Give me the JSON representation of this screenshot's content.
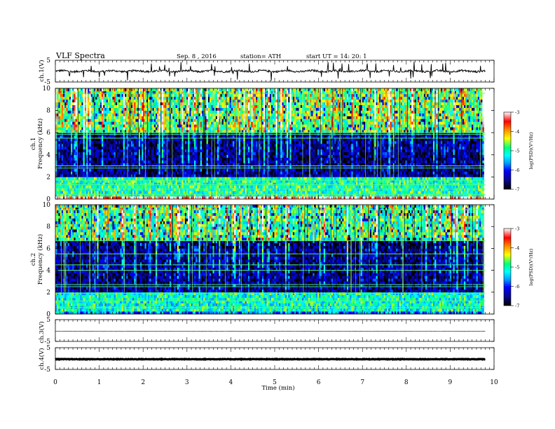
{
  "header": {
    "title": "VLF  Spectra",
    "date": "Sep. 8  , 2016",
    "station": "station= ATH",
    "start": "start  UT  =    14: 20: 1"
  },
  "colors": {
    "waveform": "#000000",
    "spectrogram_scale": [
      "#000000",
      "#08088c",
      "#0000ff",
      "#00a0ff",
      "#00ffff",
      "#00ff80",
      "#ffff00",
      "#ff8000",
      "#ff0000",
      "#ffffff"
    ]
  },
  "chart_data": [
    {
      "type": "line",
      "panel": "ch1-waveform",
      "ylabel": "ch.1(V)",
      "ylim": [
        -5,
        5
      ],
      "yticks": [
        "5",
        "-5"
      ],
      "xlim": [
        0,
        10
      ],
      "x_extent": [
        0,
        9.8
      ],
      "baseline": 0,
      "description_values": {
        "typical_amplitude": 0.8,
        "spike_amplitude": 2.5
      }
    },
    {
      "type": "heatmap",
      "panel": "ch1-spectrogram",
      "ylabel_channel": "ch.1",
      "ylabel": "Frequency  (kHz)",
      "ylim": [
        0,
        10
      ],
      "yticks": [
        "0",
        "2",
        "4",
        "6",
        "8",
        "10"
      ],
      "xlim": [
        0,
        10
      ],
      "x_extent": [
        0,
        9.8
      ],
      "colorbar": {
        "label": "log(PSD)(V²/Hz)",
        "range": [
          -7,
          -3
        ],
        "ticks": [
          "-3",
          "-4",
          "-5",
          "-6",
          "-7"
        ]
      },
      "bands": [
        {
          "f_range": [
            0,
            0.2
          ],
          "logpsd": -3.2
        },
        {
          "f_range": [
            0.2,
            2.0
          ],
          "logpsd": -5.0
        },
        {
          "f_range": [
            2.0,
            6.0
          ],
          "logpsd": -6.6
        },
        {
          "f_range": [
            6.0,
            10.0
          ],
          "logpsd": -4.8
        }
      ],
      "lines_khz": [
        0.4,
        0.9,
        1.3,
        1.7,
        2.8,
        3.0,
        5.5,
        5.85,
        6.0,
        9.55
      ]
    },
    {
      "type": "heatmap",
      "panel": "ch2-spectrogram",
      "ylabel_channel": "ch.2",
      "ylabel": "Frequency  (kHz)",
      "ylim": [
        0,
        10
      ],
      "yticks": [
        "0",
        "2",
        "4",
        "6",
        "8",
        "10"
      ],
      "xlim": [
        0,
        10
      ],
      "x_extent": [
        0,
        9.8
      ],
      "colorbar": {
        "label": "log(PSD)(V²/Hz)",
        "range": [
          -7,
          -3
        ],
        "ticks": [
          "-3",
          "-4",
          "-5",
          "-6",
          "-7"
        ]
      },
      "bands": [
        {
          "f_range": [
            0,
            0.3
          ],
          "logpsd": -5.6
        },
        {
          "f_range": [
            0.3,
            1.9
          ],
          "logpsd": -5.1
        },
        {
          "f_range": [
            1.9,
            6.8
          ],
          "logpsd": -6.6
        },
        {
          "f_range": [
            6.8,
            10.0
          ],
          "logpsd": -5.0
        }
      ],
      "lines_khz": [
        0.6,
        1.2,
        1.9,
        2.5,
        2.7,
        4.0,
        4.5,
        5.5,
        6.7,
        9.55
      ]
    },
    {
      "type": "line",
      "panel": "ch3-waveform",
      "ylabel": "ch.3(V)",
      "ylim": [
        -5,
        5
      ],
      "yticks": [
        "5",
        "-5"
      ],
      "xlim": [
        0,
        10
      ],
      "x_extent": [
        0,
        9.8
      ],
      "baseline": -0.4
    },
    {
      "type": "line",
      "panel": "ch4-waveform",
      "ylabel": "ch.4(V)",
      "ylim": [
        -5,
        5
      ],
      "yticks": [
        "5",
        "-5"
      ],
      "xlim": [
        0,
        10
      ],
      "x_extent": [
        0,
        9.8
      ],
      "baseline": -0.3
    }
  ],
  "xaxis": {
    "label": "Time  (min)",
    "ticks": [
      "0",
      "1",
      "2",
      "3",
      "4",
      "5",
      "6",
      "7",
      "8",
      "9",
      "10"
    ]
  }
}
